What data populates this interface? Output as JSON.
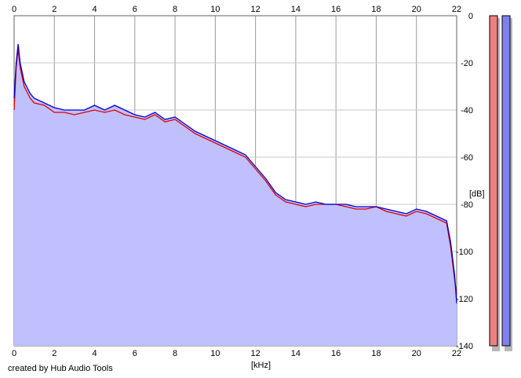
{
  "credit": "created by Hub Audio Tools",
  "chart_data": {
    "type": "line",
    "xlabel": "[kHz]",
    "ylabel": "[dB]",
    "xlim": [
      0,
      22
    ],
    "ylim": [
      -140,
      0
    ],
    "x_ticks": [
      0,
      2,
      4,
      6,
      8,
      10,
      12,
      14,
      16,
      18,
      20,
      22
    ],
    "y_ticks": [
      0,
      -20,
      -40,
      -60,
      -80,
      -100,
      -120,
      -140
    ],
    "grid": true,
    "colors": {
      "fill": "#c0c0ff",
      "left_channel": "#e00000",
      "right_channel": "#0000cc",
      "left_meter": "#f08080",
      "right_meter": "#8080f0"
    },
    "series": [
      {
        "color": "#e00000",
        "x": [
          0,
          0.1,
          0.2,
          0.3,
          0.5,
          0.8,
          1,
          1.5,
          2,
          2.5,
          3,
          3.5,
          4,
          4.5,
          5,
          5.5,
          6,
          6.5,
          7,
          7.5,
          8,
          8.5,
          9,
          9.5,
          10,
          10.5,
          11,
          11.5,
          12,
          12.5,
          13,
          13.5,
          14,
          14.5,
          15,
          15.5,
          16,
          16.5,
          17,
          17.5,
          18,
          18.5,
          19,
          19.5,
          20,
          20.5,
          21,
          21.5,
          21.7,
          21.9,
          22
        ],
        "values": [
          -40,
          -22,
          -14,
          -22,
          -30,
          -35,
          -37,
          -38,
          -41,
          -41,
          -42,
          -41,
          -40,
          -41,
          -40,
          -42,
          -43,
          -44,
          -42,
          -45,
          -44,
          -47,
          -50,
          -52,
          -54,
          -56,
          -58,
          -60,
          -65,
          -70,
          -76,
          -79,
          -80,
          -81,
          -80,
          -80,
          -80,
          -81,
          -82,
          -82,
          -81,
          -83,
          -84,
          -85,
          -83,
          -84,
          -86,
          -88,
          -98,
          -112,
          -118
        ]
      },
      {
        "color": "#0000cc",
        "x": [
          0,
          0.1,
          0.2,
          0.3,
          0.5,
          0.8,
          1,
          1.5,
          2,
          2.5,
          3,
          3.5,
          4,
          4.5,
          5,
          5.5,
          6,
          6.5,
          7,
          7.5,
          8,
          8.5,
          9,
          9.5,
          10,
          10.5,
          11,
          11.5,
          12,
          12.5,
          13,
          13.5,
          14,
          14.5,
          15,
          15.5,
          16,
          16.5,
          17,
          17.5,
          18,
          18.5,
          19,
          19.5,
          20,
          20.5,
          21,
          21.5,
          21.7,
          21.9,
          22
        ],
        "values": [
          -35,
          -20,
          -12,
          -20,
          -28,
          -33,
          -35,
          -37,
          -39,
          -40,
          -40,
          -40,
          -38,
          -40,
          -38,
          -40,
          -42,
          -43,
          -41,
          -44,
          -43,
          -46,
          -49,
          -51,
          -53,
          -55,
          -57,
          -59,
          -64,
          -69,
          -75,
          -78,
          -79,
          -80,
          -79,
          -80,
          -80,
          -80,
          -81,
          -81,
          -81,
          -82,
          -83,
          -84,
          -82,
          -83,
          -85,
          -87,
          -96,
          -110,
          -122
        ]
      }
    ],
    "meters": [
      {
        "channel": "left",
        "level": -140
      },
      {
        "channel": "right",
        "level": -140
      }
    ]
  }
}
